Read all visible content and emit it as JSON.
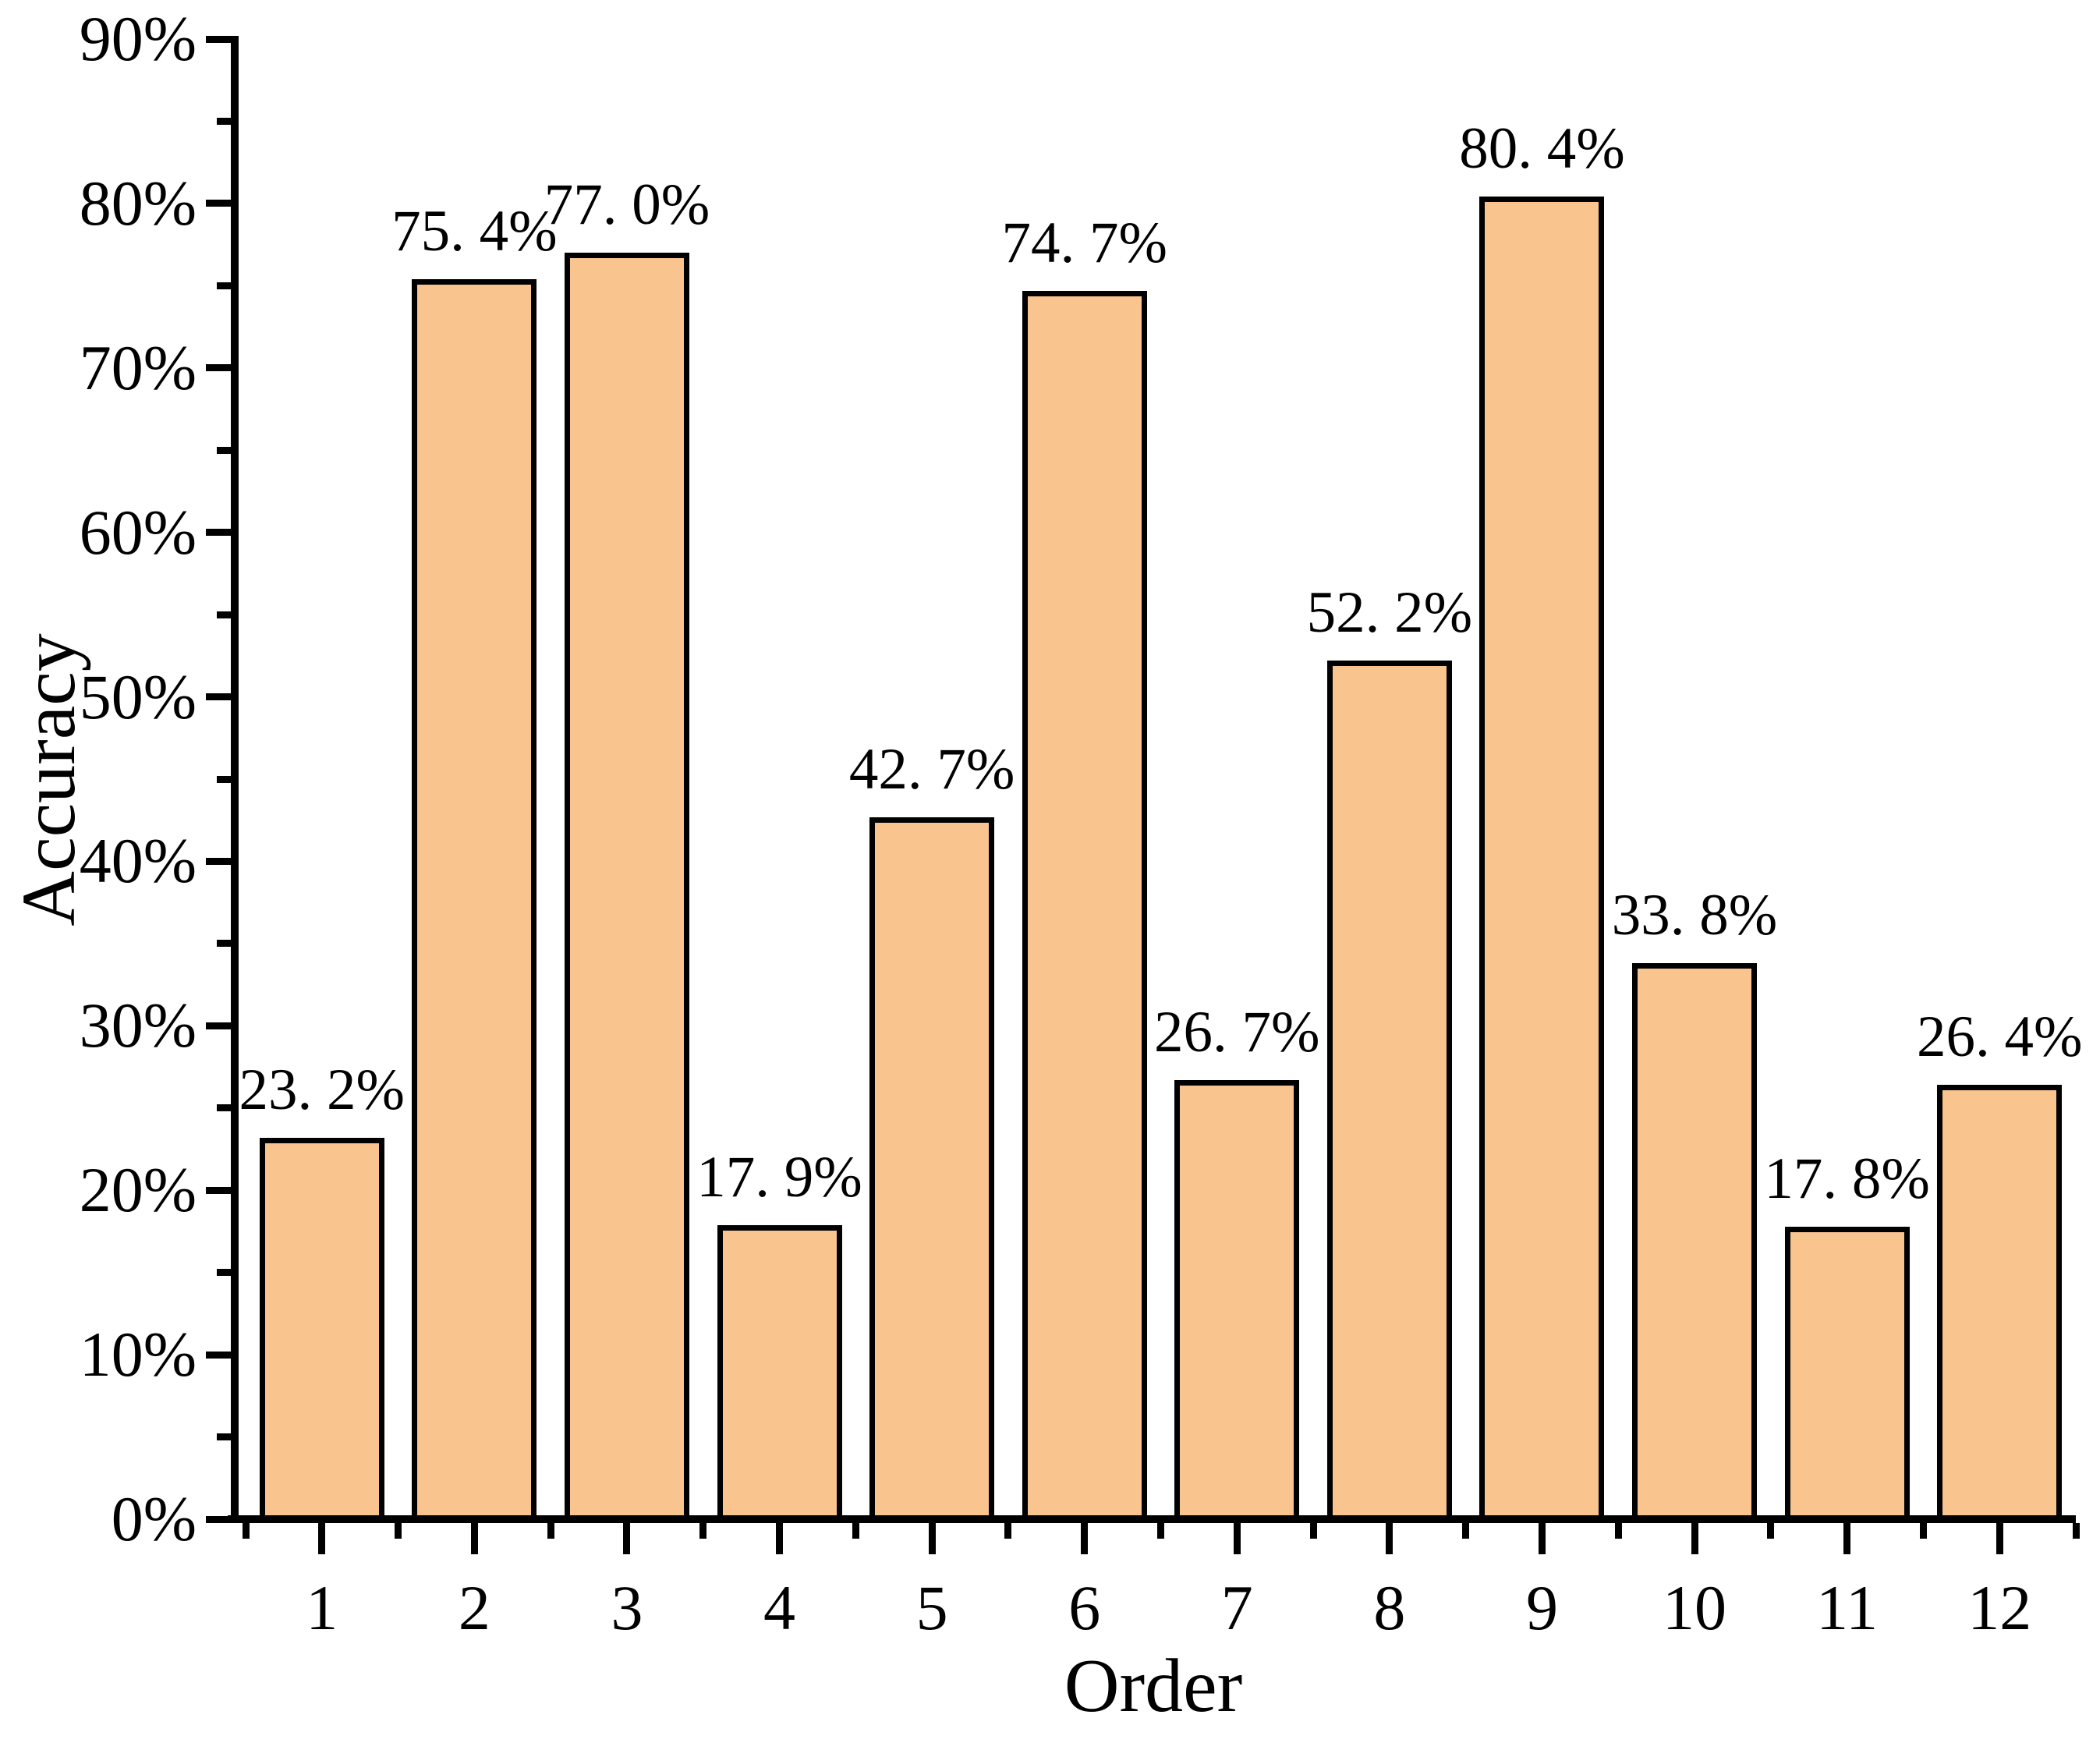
{
  "chart_data": {
    "type": "bar",
    "title": "",
    "xlabel": "Order",
    "ylabel": "Accuracy",
    "categories": [
      "1",
      "2",
      "3",
      "4",
      "5",
      "6",
      "7",
      "8",
      "9",
      "10",
      "11",
      "12"
    ],
    "values": [
      23.2,
      75.4,
      77.0,
      17.9,
      42.7,
      74.7,
      26.7,
      52.2,
      80.4,
      33.8,
      17.8,
      26.4
    ],
    "bar_labels": [
      "23. 2%",
      "75. 4%",
      "77. 0%",
      "17. 9%",
      "42. 7%",
      "74. 7%",
      "26. 7%",
      "52. 2%",
      "80. 4%",
      "33. 8%",
      "17. 8%",
      "26. 4%"
    ],
    "ylim": [
      0,
      90
    ],
    "y_major_step": 10,
    "y_minor_step": 5,
    "y_tick_labels": [
      "0%",
      "10%",
      "20%",
      "30%",
      "40%",
      "50%",
      "60%",
      "70%",
      "80%",
      "90%"
    ],
    "grid": false,
    "legend": null,
    "tick_direction": "out",
    "spines": [
      "left",
      "bottom"
    ],
    "colors": {
      "bar_fill": "#FAC48F",
      "bar_edge": "#000000",
      "axis": "#000000",
      "text": "#000000",
      "background": "#FFFFFF"
    }
  }
}
